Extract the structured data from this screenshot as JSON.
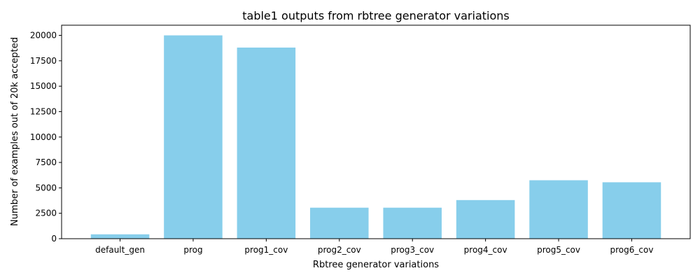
{
  "chart_data": {
    "type": "bar",
    "title": "table1 outputs from rbtree generator variations",
    "xlabel": "Rbtree generator variations",
    "ylabel": "Number of examples out of 20k accepted",
    "categories": [
      "default_gen",
      "prog",
      "prog1_cov",
      "prog2_cov",
      "prog3_cov",
      "prog4_cov",
      "prog5_cov",
      "prog6_cov"
    ],
    "values": [
      430,
      20000,
      18800,
      3050,
      3050,
      3800,
      5750,
      5550
    ],
    "ylim": [
      0,
      21000
    ],
    "yticks": [
      0,
      2500,
      5000,
      7500,
      10000,
      12500,
      15000,
      17500,
      20000
    ],
    "bar_color": "#87ceeb",
    "grid": false,
    "legend": "none"
  }
}
